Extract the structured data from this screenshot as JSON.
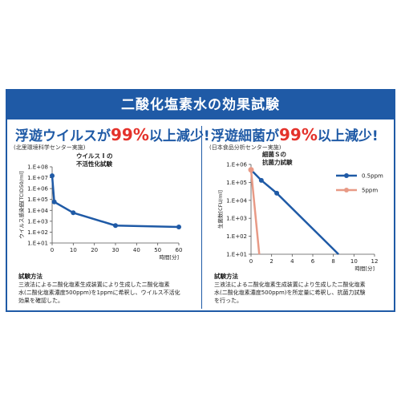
{
  "banner_title": "二酸化塩素水の効果試験",
  "left_panel": {
    "title_pre": "浮遊ウイルスが",
    "title_accent": "99%",
    "title_post": "以上減少!",
    "subtitle": "(北里環境科学センター実施)",
    "method_title": "試験方法",
    "method_lines": [
      "三液法による二酸化塩素生成装置により生成した二酸化塩素",
      "水(二酸化塩素濃度500ppm)を1ppmに希釈し、ウイルス不活化",
      "効果を確認した。"
    ]
  },
  "right_panel": {
    "title_pre": "浮遊細菌が",
    "title_accent": "99%",
    "title_post": "以上減少!",
    "subtitle": "(日本食品分析センター実施)",
    "method_title": "試験方法",
    "method_lines": [
      "三液法による二酸化塩素生成装置により生成した二酸化塩素",
      "水(二酸化塩素濃度500ppm)を所定量に希釈し、抗菌力試験",
      "を行った。"
    ]
  },
  "colors": {
    "brand_blue": "#1f5aa6",
    "accent_red": "#e4322b",
    "series_blue": "#1f5aa6",
    "series_salmon": "#e89a86"
  },
  "chart_data": [
    {
      "type": "line",
      "ylabel": "ウイルス感染価[TCID50/ml]",
      "xlabel": "時間[分]",
      "annotation": [
        "ウイルス I の",
        "不活性化試験"
      ],
      "x_ticks": [
        "0",
        "10",
        "20",
        "30",
        "40",
        "50",
        "60"
      ],
      "y_ticks": [
        "1.E+01",
        "1.E+02",
        "1.E+03",
        "1.E+04",
        "1.E+05",
        "1.E+06",
        "1.E+07",
        "1.E+08"
      ],
      "xlim": [
        0,
        60
      ],
      "ylim": [
        10,
        100000000
      ],
      "yscale": "log",
      "series": [
        {
          "x": [
            0,
            1,
            10,
            30,
            60
          ],
          "y": [
            15000000,
            60000,
            6000,
            400,
            300
          ]
        }
      ]
    },
    {
      "type": "line",
      "ylabel": "生菌数[CFU/ml]",
      "xlabel": "時間[分]",
      "annotation": [
        "細菌Ｓの",
        "抗菌力試験"
      ],
      "x_ticks": [
        "0",
        "2",
        "4",
        "6",
        "8",
        "10",
        "12"
      ],
      "y_ticks": [
        "1.E+01",
        "1.E+02",
        "1.E+03",
        "1.E+04",
        "1.E+05",
        "1.E+06"
      ],
      "xlim": [
        0,
        12
      ],
      "ylim": [
        10,
        1000000
      ],
      "yscale": "log",
      "legend_position": "top-right",
      "series": [
        {
          "name": "0.5ppm",
          "x": [
            0,
            1,
            2.5,
            8.5
          ],
          "y": [
            500000,
            130000,
            25000,
            10
          ]
        },
        {
          "name": "5ppm",
          "x": [
            0,
            0.8
          ],
          "y": [
            500000,
            10
          ]
        }
      ]
    }
  ]
}
